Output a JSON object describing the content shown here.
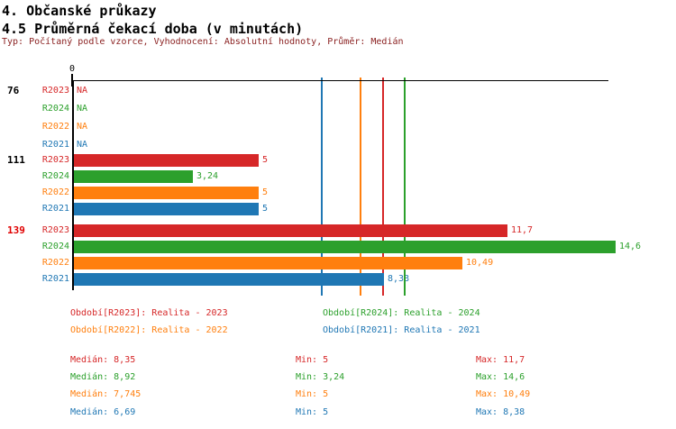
{
  "header": {
    "title": "4. Občanské průkazy",
    "subtitle": "4.5 Průměrná čekací doba (v minutách)",
    "meta": "Typ: Počítaný podle vzorce, Vyhodnocení: Absolutní hodnoty, Průměr: Medián",
    "meta_color": "#8b2222"
  },
  "chart_data": {
    "type": "bar",
    "title": "4.5 Průměrná čekací doba (v minutách)",
    "orientation": "horizontal",
    "categories": [
      "76",
      "111",
      "139"
    ],
    "category_label_colors": [
      "#000000",
      "#000000",
      "#e00000"
    ],
    "series": [
      {
        "name": "R2023",
        "color": "#d62728",
        "values": [
          null,
          5,
          11.7
        ],
        "value_labels": [
          "NA",
          "5",
          "11,7"
        ],
        "median": 8.35
      },
      {
        "name": "R2024",
        "color": "#2ca02c",
        "values": [
          null,
          3.24,
          14.6
        ],
        "value_labels": [
          "NA",
          "3,24",
          "14,6"
        ],
        "median": 8.92
      },
      {
        "name": "R2022",
        "color": "#ff7f0e",
        "values": [
          null,
          5,
          10.49
        ],
        "value_labels": [
          "NA",
          "5",
          "10,49"
        ],
        "median": 7.745
      },
      {
        "name": "R2021",
        "color": "#1f77b4",
        "values": [
          null,
          5,
          8.38
        ],
        "value_labels": [
          "NA",
          "5",
          "8,38"
        ],
        "median": 6.69
      }
    ],
    "axis": {
      "zero_label": "0",
      "xlim": [
        0,
        14.7
      ],
      "grid": false
    },
    "median_lines_note": "one vertical line per series at its median value",
    "legend_position": "bottom"
  },
  "legend": {
    "items": [
      {
        "label": "Období[R2023]: Realita - 2023"
      },
      {
        "label": "Období[R2024]: Realita - 2024"
      },
      {
        "label": "Období[R2022]: Realita - 2022"
      },
      {
        "label": "Období[R2021]: Realita - 2021"
      }
    ]
  },
  "stats": {
    "rows": [
      {
        "median": "Medián: 8,35",
        "min": "Min: 5",
        "max": "Max: 11,7"
      },
      {
        "median": "Medián: 8,92",
        "min": "Min: 3,24",
        "max": "Max: 14,6"
      },
      {
        "median": "Medián: 7,745",
        "min": "Min: 5",
        "max": "Max: 10,49"
      },
      {
        "median": "Medián: 6,69",
        "min": "Min: 5",
        "max": "Max: 8,38"
      }
    ]
  }
}
